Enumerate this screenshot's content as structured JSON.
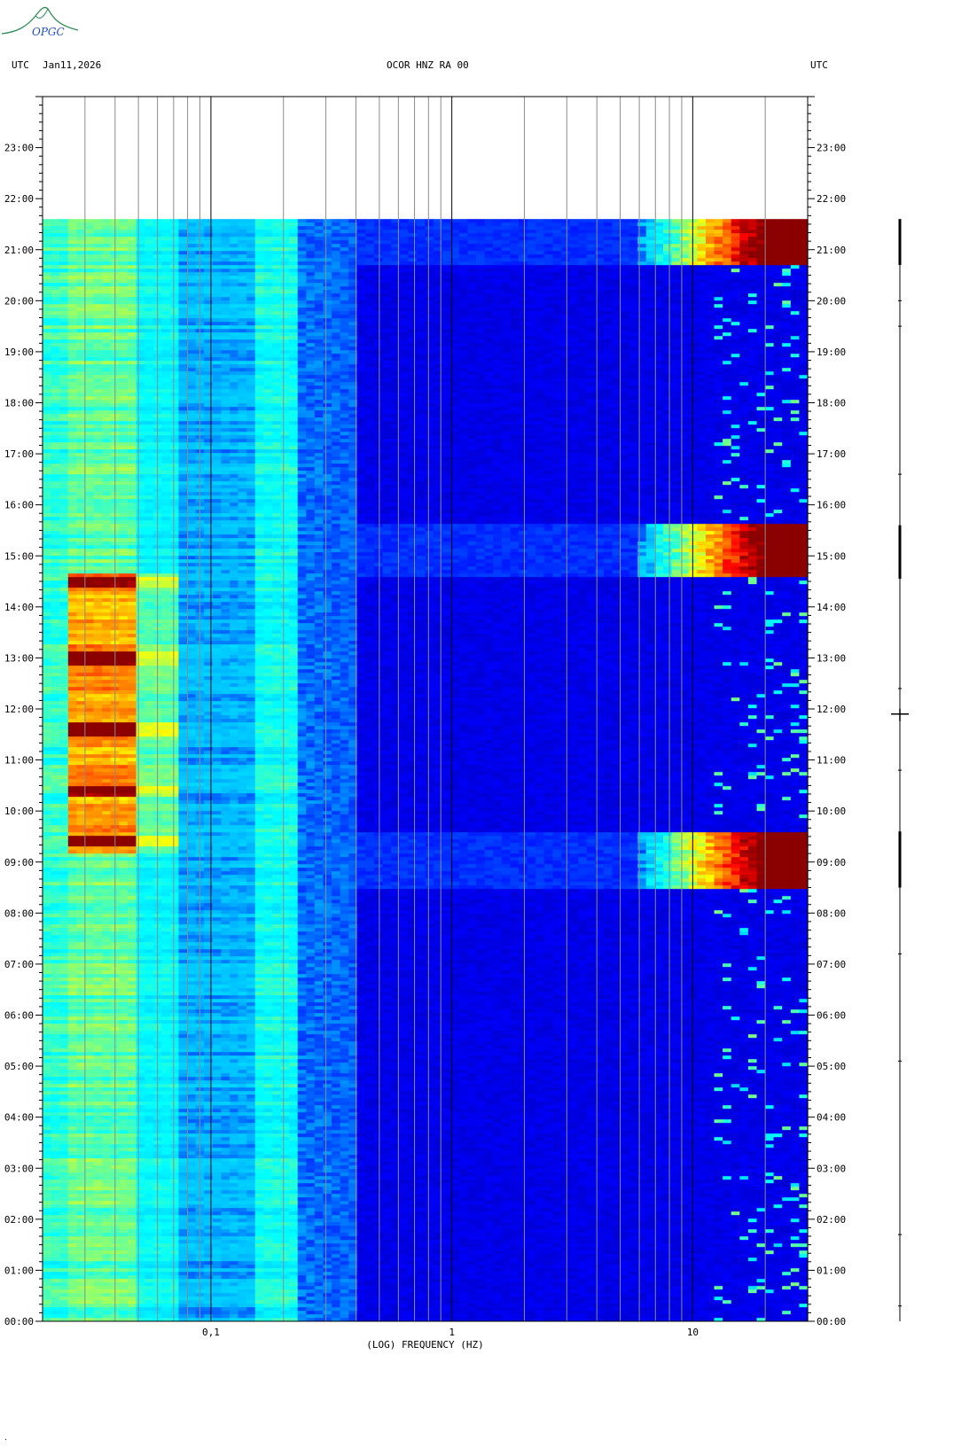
{
  "header": {
    "left_tz": "UTC",
    "date": "Jan11,2026",
    "station": "OCOR HNZ RA 00",
    "right_tz": "UTC"
  },
  "logo": {
    "text": "OPGC",
    "color": "#2e8b57",
    "text_color": "#1f4fbf"
  },
  "chart_data": {
    "type": "heatmap",
    "xlabel": "(LOG) FREQUENCY (HZ)",
    "x_scale": "log",
    "xlim": [
      0.02,
      30
    ],
    "x_ticks": [
      0.1,
      1,
      10
    ],
    "x_tick_labels": [
      "0,1",
      "1",
      "10"
    ],
    "x_minor_ticks": [
      0.03,
      0.04,
      0.05,
      0.06,
      0.07,
      0.08,
      0.09,
      0.2,
      0.3,
      0.4,
      0.5,
      0.6,
      0.7,
      0.8,
      0.9,
      2,
      3,
      4,
      5,
      6,
      7,
      8,
      9,
      20
    ],
    "y_unit": "hours UTC",
    "ylim": [
      0,
      24
    ],
    "y_ticks": [
      0,
      1,
      2,
      3,
      4,
      5,
      6,
      7,
      8,
      9,
      10,
      11,
      12,
      13,
      14,
      15,
      16,
      17,
      18,
      19,
      20,
      21,
      22,
      23
    ],
    "y_tick_labels": [
      "00:00",
      "01:00",
      "02:00",
      "03:00",
      "04:00",
      "05:00",
      "06:00",
      "07:00",
      "08:00",
      "09:00",
      "10:00",
      "11:00",
      "12:00",
      "13:00",
      "14:00",
      "15:00",
      "16:00",
      "17:00",
      "18:00",
      "19:00",
      "20:00",
      "21:00",
      "22:00",
      "23:00"
    ],
    "data_end_hour": 21.6,
    "colormap": [
      "#00008b",
      "#0000ff",
      "#00bfff",
      "#00ffff",
      "#7fff7f",
      "#ffff00",
      "#ff7f00",
      "#ff0000",
      "#8b0000"
    ],
    "high_freq_events": [
      {
        "start": 8.5,
        "end": 9.6
      },
      {
        "start": 14.55,
        "end": 15.6
      },
      {
        "start": 20.7,
        "end": 21.6
      }
    ],
    "microseism_peak_hours": [
      13.0,
      11.6,
      10.4,
      9.4,
      14.5
    ]
  }
}
